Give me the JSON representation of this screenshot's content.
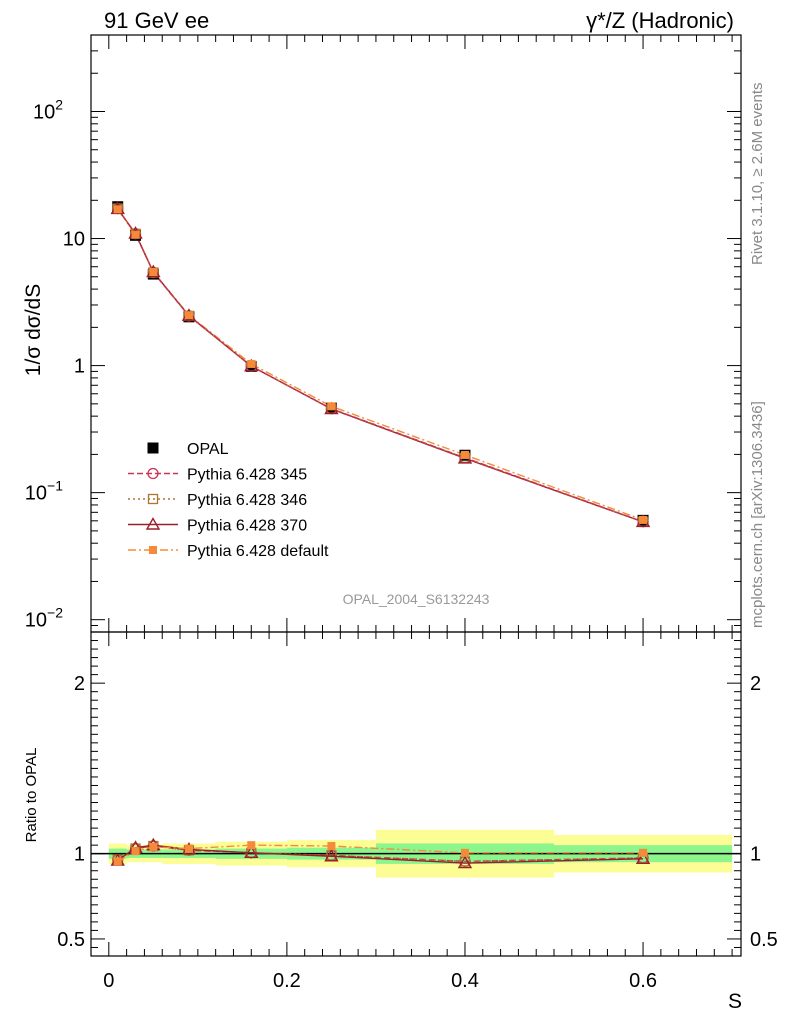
{
  "header": {
    "left_title": "91 GeV ee",
    "right_title": "γ*/Z (Hadronic)"
  },
  "side_labels": {
    "rivet": "Rivet 3.1.10, ≥ 2.6M events",
    "mcplots": "mcplots.cern.ch [arXiv:1306.3436]"
  },
  "watermark": "OPAL_2004_S6132243",
  "colors": {
    "data": "#000000",
    "p345": "#cc3355",
    "p346": "#aa7733",
    "p370": "#991f2b",
    "pdefault": "#f58b3a",
    "band_inner": "#8cf58c",
    "band_outer": "#fdfd96"
  },
  "chart_data": [
    {
      "type": "line",
      "panel": "main",
      "ylabel": "1/σ dσ/dS",
      "yscale": "log",
      "ylim": [
        0.008,
        400
      ],
      "xlim": [
        -0.02,
        0.71
      ],
      "y_tick_labels": [
        {
          "value": 0.01,
          "base": "10",
          "exp": "−2"
        },
        {
          "value": 0.1,
          "base": "10",
          "exp": "−1"
        },
        {
          "value": 1,
          "base": "1",
          "exp": ""
        },
        {
          "value": 10,
          "base": "10",
          "exp": ""
        },
        {
          "value": 100,
          "base": "10",
          "exp": "2"
        }
      ],
      "x": [
        0.01,
        0.03,
        0.05,
        0.09,
        0.16,
        0.25,
        0.4,
        0.6
      ],
      "series": [
        {
          "key": "data",
          "name": "OPAL",
          "marker": "square",
          "values": [
            17.8,
            10.6,
            5.25,
            2.42,
            0.985,
            0.462,
            0.197,
            0.0605
          ]
        },
        {
          "key": "p345",
          "name": "Pythia 6.428 345",
          "marker": "circle-open",
          "dash": "dashed",
          "values": [
            17.2,
            10.9,
            5.4,
            2.46,
            0.99,
            0.458,
            0.188,
            0.059
          ]
        },
        {
          "key": "p346",
          "name": "Pythia 6.428 346",
          "marker": "square-open",
          "dash": "dotted",
          "values": [
            17.2,
            10.9,
            5.4,
            2.46,
            0.99,
            0.458,
            0.188,
            0.059
          ]
        },
        {
          "key": "p370",
          "name": "Pythia 6.428 370",
          "marker": "triangle-open",
          "dash": "solid",
          "values": [
            17.1,
            10.95,
            5.45,
            2.47,
            0.99,
            0.455,
            0.186,
            0.0588
          ]
        },
        {
          "key": "pdefault",
          "name": "Pythia 6.428 default",
          "marker": "square-small",
          "dash": "dashdot",
          "values": [
            17.0,
            10.75,
            5.45,
            2.49,
            1.03,
            0.478,
            0.198,
            0.061
          ]
        }
      ]
    },
    {
      "type": "line",
      "panel": "ratio",
      "ylabel": "Ratio to OPAL",
      "xlabel": "S",
      "ylim": [
        0.4,
        2.3
      ],
      "y_ticks": [
        0.5,
        1,
        2
      ],
      "y_tick_labels": [
        "0.5",
        "1",
        "2"
      ],
      "x_ticks": [
        0,
        0.2,
        0.4,
        0.6
      ],
      "x_tick_labels": [
        "0",
        "0.2",
        "0.4",
        "0.6"
      ],
      "bins": [
        [
          0.0,
          0.02
        ],
        [
          0.02,
          0.04
        ],
        [
          0.04,
          0.06
        ],
        [
          0.06,
          0.12
        ],
        [
          0.12,
          0.2
        ],
        [
          0.2,
          0.3
        ],
        [
          0.3,
          0.5
        ],
        [
          0.5,
          0.7
        ]
      ],
      "band_inner": [
        0.03,
        0.025,
        0.025,
        0.025,
        0.03,
        0.035,
        0.06,
        0.05
      ],
      "band_outer": [
        0.06,
        0.05,
        0.05,
        0.06,
        0.07,
        0.08,
        0.14,
        0.11
      ],
      "x": [
        0.01,
        0.03,
        0.05,
        0.09,
        0.16,
        0.25,
        0.4,
        0.6
      ],
      "series": [
        {
          "key": "p345",
          "name": "Pythia 6.428 345",
          "values": [
            0.965,
            1.03,
            1.045,
            1.02,
            1.005,
            0.99,
            0.955,
            0.975
          ]
        },
        {
          "key": "p346",
          "name": "Pythia 6.428 346",
          "values": [
            0.965,
            1.03,
            1.045,
            1.02,
            1.005,
            0.99,
            0.955,
            0.975
          ]
        },
        {
          "key": "p370",
          "name": "Pythia 6.428 370",
          "values": [
            0.96,
            1.035,
            1.05,
            1.025,
            1.005,
            0.985,
            0.945,
            0.97
          ]
        },
        {
          "key": "pdefault",
          "name": "Pythia 6.428 default",
          "values": [
            0.955,
            1.015,
            1.04,
            1.03,
            1.05,
            1.045,
            1.005,
            1.005
          ]
        }
      ]
    }
  ]
}
